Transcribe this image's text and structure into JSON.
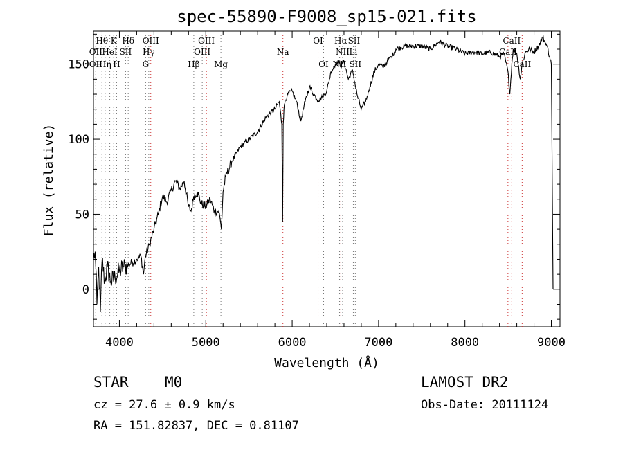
{
  "chart_data": {
    "type": "line",
    "title": "spec-55890-F9008_sp15-021.fits",
    "xlabel": "Wavelength (Å)",
    "ylabel": "Flux (relative)",
    "xlim": [
      3700,
      9100
    ],
    "ylim": [
      -25,
      172
    ],
    "x_ticks": [
      4000,
      5000,
      6000,
      7000,
      8000,
      9000
    ],
    "y_ticks": [
      0,
      50,
      100,
      150
    ],
    "grid": false,
    "series": [
      {
        "x": [
          3700,
          3720,
          3740,
          3760,
          3780,
          3800,
          3830,
          3860,
          3900,
          3950,
          4000,
          4050,
          4100,
          4150,
          4200,
          4250,
          4280,
          4300,
          4350,
          4400,
          4450,
          4500,
          4550,
          4600,
          4650,
          4700,
          4750,
          4800,
          4830,
          4860,
          4900,
          4950,
          5000,
          5050,
          5100,
          5150,
          5170,
          5180,
          5200,
          5230,
          5300,
          5400,
          5500,
          5600,
          5700,
          5800,
          5850,
          5880,
          5890,
          5896,
          5905,
          5920,
          5950,
          6000,
          6050,
          6100,
          6150,
          6200,
          6250,
          6300,
          6350,
          6400,
          6450,
          6500,
          6550,
          6563,
          6600,
          6650,
          6700,
          6750,
          6800,
          6850,
          6900,
          6950,
          7000,
          7050,
          7100,
          7150,
          7200,
          7300,
          7400,
          7500,
          7600,
          7700,
          7800,
          7900,
          8000,
          8100,
          8200,
          8300,
          8400,
          8450,
          8498,
          8520,
          8542,
          8560,
          8600,
          8640,
          8662,
          8700,
          8750,
          8800,
          8850,
          8900,
          8950,
          8980,
          9000,
          9020
        ],
        "y": [
          20,
          25,
          -10,
          15,
          -15,
          20,
          5,
          15,
          5,
          8,
          12,
          15,
          16,
          18,
          20,
          22,
          10,
          22,
          30,
          40,
          50,
          62,
          58,
          66,
          72,
          67,
          72,
          55,
          52,
          62,
          65,
          57,
          55,
          60,
          52,
          52,
          45,
          40,
          65,
          75,
          85,
          95,
          100,
          105,
          115,
          120,
          125,
          110,
          45,
          110,
          120,
          126,
          130,
          132,
          125,
          112,
          125,
          135,
          130,
          126,
          128,
          132,
          145,
          150,
          152,
          148,
          152,
          140,
          146,
          130,
          120,
          125,
          135,
          145,
          150,
          148,
          152,
          155,
          160,
          162,
          162,
          162,
          160,
          165,
          162,
          160,
          157,
          158,
          157,
          158,
          155,
          157,
          145,
          130,
          150,
          160,
          157,
          140,
          150,
          158,
          160,
          158,
          162,
          168,
          162,
          155,
          150,
          0
        ]
      }
    ],
    "line_markers": [
      {
        "label": "H&#952;",
        "text": "Hθ",
        "wavelength": 3798,
        "row": 0
      },
      {
        "text": "K",
        "wavelength": 3934,
        "row": 0
      },
      {
        "text": "Hδ",
        "wavelength": 4102,
        "row": 0
      },
      {
        "text": "OIII",
        "wavelength": 4363,
        "row": 0
      },
      {
        "text": "OIII",
        "wavelength": 5007,
        "row": 0
      },
      {
        "text": "OI",
        "wavelength": 6300,
        "row": 0
      },
      {
        "text": "Hα",
        "wavelength": 6563,
        "row": 0
      },
      {
        "text": "SII",
        "wavelength": 6716,
        "row": 0
      },
      {
        "text": "CaII",
        "wavelength": 8542,
        "row": 0
      },
      {
        "text": "OII",
        "wavelength": 3727,
        "row": 1
      },
      {
        "text": "HeI",
        "wavelength": 3889,
        "row": 1
      },
      {
        "text": "SII",
        "wavelength": 4072,
        "row": 1
      },
      {
        "text": "Hγ",
        "wavelength": 4340,
        "row": 1
      },
      {
        "text": "OIII",
        "wavelength": 4959,
        "row": 1
      },
      {
        "text": "NII",
        "wavelength": 6584,
        "row": 1
      },
      {
        "text": "Li",
        "wavelength": 6708,
        "row": 1
      },
      {
        "text": "CaII",
        "wavelength": 8498,
        "row": 1
      },
      {
        "text": "OII",
        "wavelength": 3727,
        "row": 2
      },
      {
        "text": "Hη",
        "wavelength": 3835,
        "row": 2
      },
      {
        "text": "H",
        "wavelength": 3968,
        "row": 2
      },
      {
        "text": "G",
        "wavelength": 4304,
        "row": 2
      },
      {
        "text": "Hβ",
        "wavelength": 4861,
        "row": 2
      },
      {
        "text": "Mg",
        "wavelength": 5175,
        "row": 2
      },
      {
        "text": "Na",
        "wavelength": 5893,
        "row": 1
      },
      {
        "text": "OI",
        "wavelength": 6364,
        "row": 2
      },
      {
        "text": "NII",
        "wavelength": 6548,
        "row": 2
      },
      {
        "text": "SII",
        "wavelength": 6731,
        "row": 2
      },
      {
        "text": "CaII",
        "wavelength": 8662,
        "row": 2
      }
    ],
    "marker_colors": {
      "emission": "#cc3333",
      "absorption": "#777777"
    }
  },
  "info": {
    "object_class": "STAR",
    "subclass": "M0",
    "survey": "LAMOST DR2",
    "redshift": "cz = 27.6 ± 0.9 km/s",
    "obs_date": "Obs-Date: 20111124",
    "coords": "RA = 151.82837, DEC =   0.81107"
  }
}
